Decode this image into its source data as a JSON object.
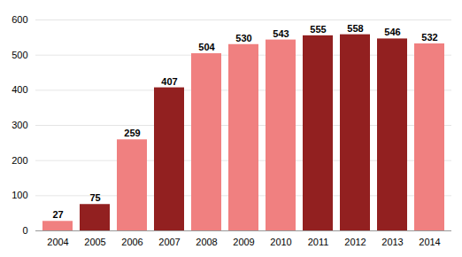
{
  "chart_data": {
    "type": "bar",
    "categories": [
      "2004",
      "2005",
      "2006",
      "2007",
      "2008",
      "2009",
      "2010",
      "2011",
      "2012",
      "2013",
      "2014"
    ],
    "values": [
      27,
      75,
      259,
      407,
      504,
      530,
      543,
      555,
      558,
      546,
      532
    ],
    "colors": [
      "#F08080",
      "#922020",
      "#F08080",
      "#922020",
      "#F08080",
      "#F08080",
      "#F08080",
      "#922020",
      "#922020",
      "#922020",
      "#F08080"
    ],
    "ylim": [
      0,
      600
    ],
    "yticks": [
      0,
      100,
      200,
      300,
      400,
      500,
      600
    ],
    "grid": true,
    "data_labels": true
  }
}
